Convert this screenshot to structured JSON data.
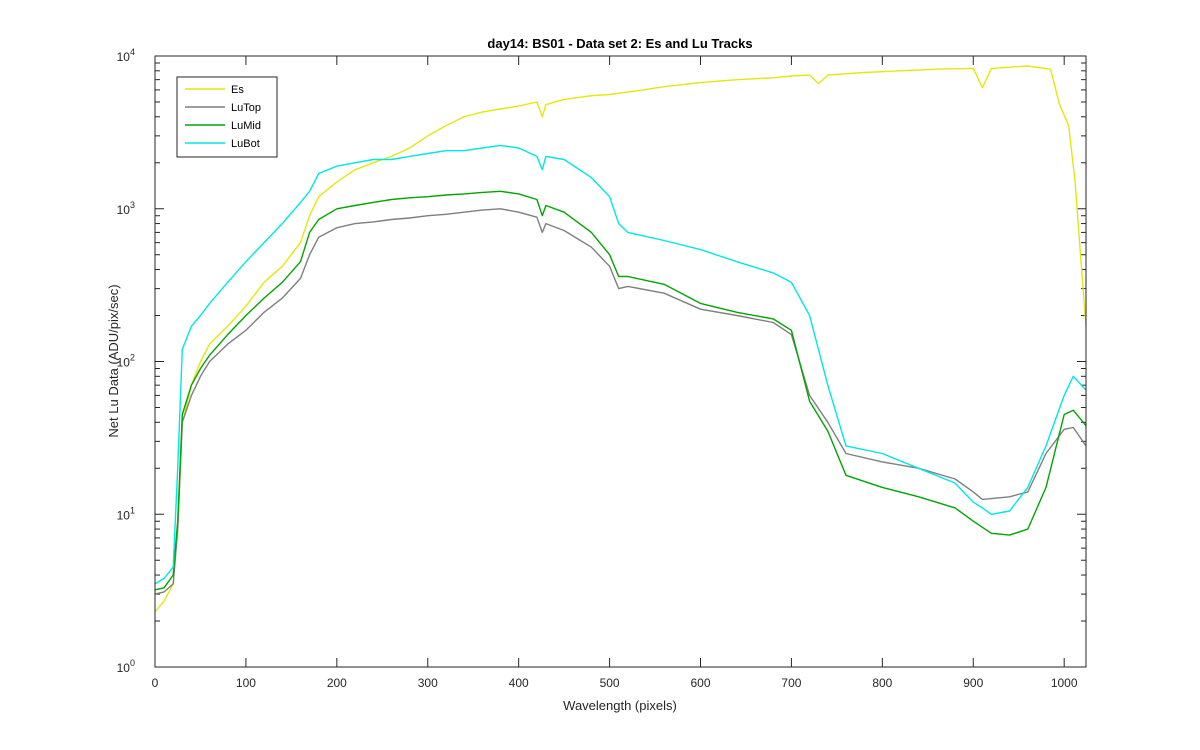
{
  "chart_data": {
    "type": "line",
    "title": "day14: BS01 - Data set 2: Es and Lu Tracks",
    "xlabel": "Wavelength (pixels)",
    "ylabel": "Net Lu Data (ADU/pix/sec)",
    "xlim": [
      0,
      1024
    ],
    "ylim": [
      1,
      10000
    ],
    "yscale": "log",
    "x_ticks": [
      0,
      100,
      200,
      300,
      400,
      500,
      600,
      700,
      800,
      900,
      1000
    ],
    "y_ticks": [
      {
        "value": 1,
        "base": "10",
        "exp": "0"
      },
      {
        "value": 10,
        "base": "10",
        "exp": "1"
      },
      {
        "value": 100,
        "base": "10",
        "exp": "2"
      },
      {
        "value": 1000,
        "base": "10",
        "exp": "3"
      },
      {
        "value": 10000,
        "base": "10",
        "exp": "4"
      }
    ],
    "grid": false,
    "legend": {
      "position": "top-left"
    },
    "series": [
      {
        "name": "Es",
        "color": "#e6e60f",
        "points": [
          [
            0,
            2.3
          ],
          [
            10,
            2.7
          ],
          [
            20,
            3.5
          ],
          [
            25,
            8
          ],
          [
            30,
            40
          ],
          [
            40,
            70
          ],
          [
            50,
            100
          ],
          [
            60,
            130
          ],
          [
            80,
            170
          ],
          [
            100,
            230
          ],
          [
            120,
            330
          ],
          [
            140,
            420
          ],
          [
            160,
            600
          ],
          [
            170,
            900
          ],
          [
            180,
            1200
          ],
          [
            200,
            1500
          ],
          [
            220,
            1800
          ],
          [
            240,
            2000
          ],
          [
            260,
            2200
          ],
          [
            280,
            2500
          ],
          [
            300,
            3000
          ],
          [
            320,
            3500
          ],
          [
            340,
            4000
          ],
          [
            360,
            4300
          ],
          [
            380,
            4500
          ],
          [
            400,
            4700
          ],
          [
            420,
            5000
          ],
          [
            426,
            4000
          ],
          [
            430,
            4800
          ],
          [
            450,
            5200
          ],
          [
            480,
            5500
          ],
          [
            500,
            5600
          ],
          [
            520,
            5800
          ],
          [
            560,
            6300
          ],
          [
            600,
            6700
          ],
          [
            640,
            7000
          ],
          [
            680,
            7200
          ],
          [
            700,
            7400
          ],
          [
            720,
            7500
          ],
          [
            730,
            6600
          ],
          [
            740,
            7500
          ],
          [
            780,
            7800
          ],
          [
            820,
            8000
          ],
          [
            860,
            8200
          ],
          [
            900,
            8300
          ],
          [
            910,
            6200
          ],
          [
            920,
            8300
          ],
          [
            960,
            8600
          ],
          [
            985,
            8200
          ],
          [
            995,
            4800
          ],
          [
            1005,
            3500
          ],
          [
            1012,
            1500
          ],
          [
            1018,
            500
          ],
          [
            1024,
            170
          ]
        ]
      },
      {
        "name": "LuTop",
        "color": "#7f7f7f",
        "points": [
          [
            0,
            3.0
          ],
          [
            10,
            3.1
          ],
          [
            20,
            3.5
          ],
          [
            25,
            8
          ],
          [
            30,
            40
          ],
          [
            40,
            60
          ],
          [
            50,
            80
          ],
          [
            60,
            100
          ],
          [
            80,
            130
          ],
          [
            100,
            160
          ],
          [
            120,
            210
          ],
          [
            140,
            260
          ],
          [
            160,
            350
          ],
          [
            170,
            500
          ],
          [
            180,
            650
          ],
          [
            200,
            750
          ],
          [
            220,
            800
          ],
          [
            240,
            820
          ],
          [
            260,
            850
          ],
          [
            280,
            870
          ],
          [
            300,
            900
          ],
          [
            320,
            920
          ],
          [
            340,
            950
          ],
          [
            360,
            980
          ],
          [
            380,
            1000
          ],
          [
            400,
            950
          ],
          [
            420,
            880
          ],
          [
            426,
            700
          ],
          [
            430,
            800
          ],
          [
            450,
            720
          ],
          [
            480,
            560
          ],
          [
            500,
            420
          ],
          [
            510,
            300
          ],
          [
            520,
            310
          ],
          [
            560,
            280
          ],
          [
            600,
            220
          ],
          [
            640,
            200
          ],
          [
            680,
            180
          ],
          [
            700,
            150
          ],
          [
            720,
            60
          ],
          [
            740,
            40
          ],
          [
            760,
            25
          ],
          [
            800,
            22
          ],
          [
            840,
            20
          ],
          [
            880,
            17
          ],
          [
            900,
            14
          ],
          [
            910,
            12.5
          ],
          [
            940,
            13
          ],
          [
            960,
            14
          ],
          [
            980,
            25
          ],
          [
            1000,
            36
          ],
          [
            1010,
            37
          ],
          [
            1024,
            28
          ]
        ]
      },
      {
        "name": "LuMid",
        "color": "#00a600",
        "points": [
          [
            0,
            3.2
          ],
          [
            10,
            3.3
          ],
          [
            20,
            4.0
          ],
          [
            25,
            9
          ],
          [
            30,
            45
          ],
          [
            40,
            70
          ],
          [
            50,
            90
          ],
          [
            60,
            110
          ],
          [
            80,
            150
          ],
          [
            100,
            200
          ],
          [
            120,
            260
          ],
          [
            140,
            330
          ],
          [
            160,
            450
          ],
          [
            170,
            700
          ],
          [
            180,
            850
          ],
          [
            200,
            1000
          ],
          [
            220,
            1050
          ],
          [
            240,
            1100
          ],
          [
            260,
            1150
          ],
          [
            280,
            1180
          ],
          [
            300,
            1200
          ],
          [
            320,
            1230
          ],
          [
            340,
            1250
          ],
          [
            360,
            1280
          ],
          [
            380,
            1300
          ],
          [
            400,
            1250
          ],
          [
            420,
            1150
          ],
          [
            426,
            900
          ],
          [
            430,
            1050
          ],
          [
            450,
            950
          ],
          [
            480,
            700
          ],
          [
            500,
            500
          ],
          [
            510,
            360
          ],
          [
            520,
            360
          ],
          [
            560,
            320
          ],
          [
            600,
            240
          ],
          [
            640,
            210
          ],
          [
            680,
            190
          ],
          [
            700,
            160
          ],
          [
            720,
            55
          ],
          [
            740,
            35
          ],
          [
            760,
            18
          ],
          [
            800,
            15
          ],
          [
            840,
            13
          ],
          [
            880,
            11
          ],
          [
            900,
            9
          ],
          [
            920,
            7.5
          ],
          [
            940,
            7.3
          ],
          [
            960,
            8
          ],
          [
            980,
            15
          ],
          [
            1000,
            45
          ],
          [
            1010,
            48
          ],
          [
            1024,
            38
          ]
        ]
      },
      {
        "name": "LuBot",
        "color": "#00e6e6",
        "points": [
          [
            0,
            3.5
          ],
          [
            10,
            3.8
          ],
          [
            20,
            4.5
          ],
          [
            25,
            20
          ],
          [
            30,
            120
          ],
          [
            40,
            170
          ],
          [
            50,
            200
          ],
          [
            60,
            240
          ],
          [
            80,
            330
          ],
          [
            100,
            450
          ],
          [
            120,
            600
          ],
          [
            140,
            800
          ],
          [
            160,
            1100
          ],
          [
            170,
            1300
          ],
          [
            180,
            1700
          ],
          [
            200,
            1900
          ],
          [
            220,
            2000
          ],
          [
            240,
            2100
          ],
          [
            260,
            2100
          ],
          [
            280,
            2200
          ],
          [
            300,
            2300
          ],
          [
            320,
            2400
          ],
          [
            340,
            2400
          ],
          [
            360,
            2500
          ],
          [
            380,
            2600
          ],
          [
            400,
            2500
          ],
          [
            420,
            2200
          ],
          [
            426,
            1800
          ],
          [
            430,
            2200
          ],
          [
            450,
            2100
          ],
          [
            480,
            1600
          ],
          [
            500,
            1200
          ],
          [
            510,
            800
          ],
          [
            520,
            700
          ],
          [
            560,
            620
          ],
          [
            600,
            540
          ],
          [
            640,
            450
          ],
          [
            680,
            380
          ],
          [
            700,
            330
          ],
          [
            720,
            200
          ],
          [
            740,
            70
          ],
          [
            760,
            28
          ],
          [
            800,
            25
          ],
          [
            840,
            20
          ],
          [
            880,
            16
          ],
          [
            900,
            12
          ],
          [
            910,
            11
          ],
          [
            920,
            10
          ],
          [
            940,
            10.5
          ],
          [
            960,
            15
          ],
          [
            980,
            28
          ],
          [
            1000,
            60
          ],
          [
            1010,
            80
          ],
          [
            1024,
            65
          ]
        ]
      }
    ]
  }
}
